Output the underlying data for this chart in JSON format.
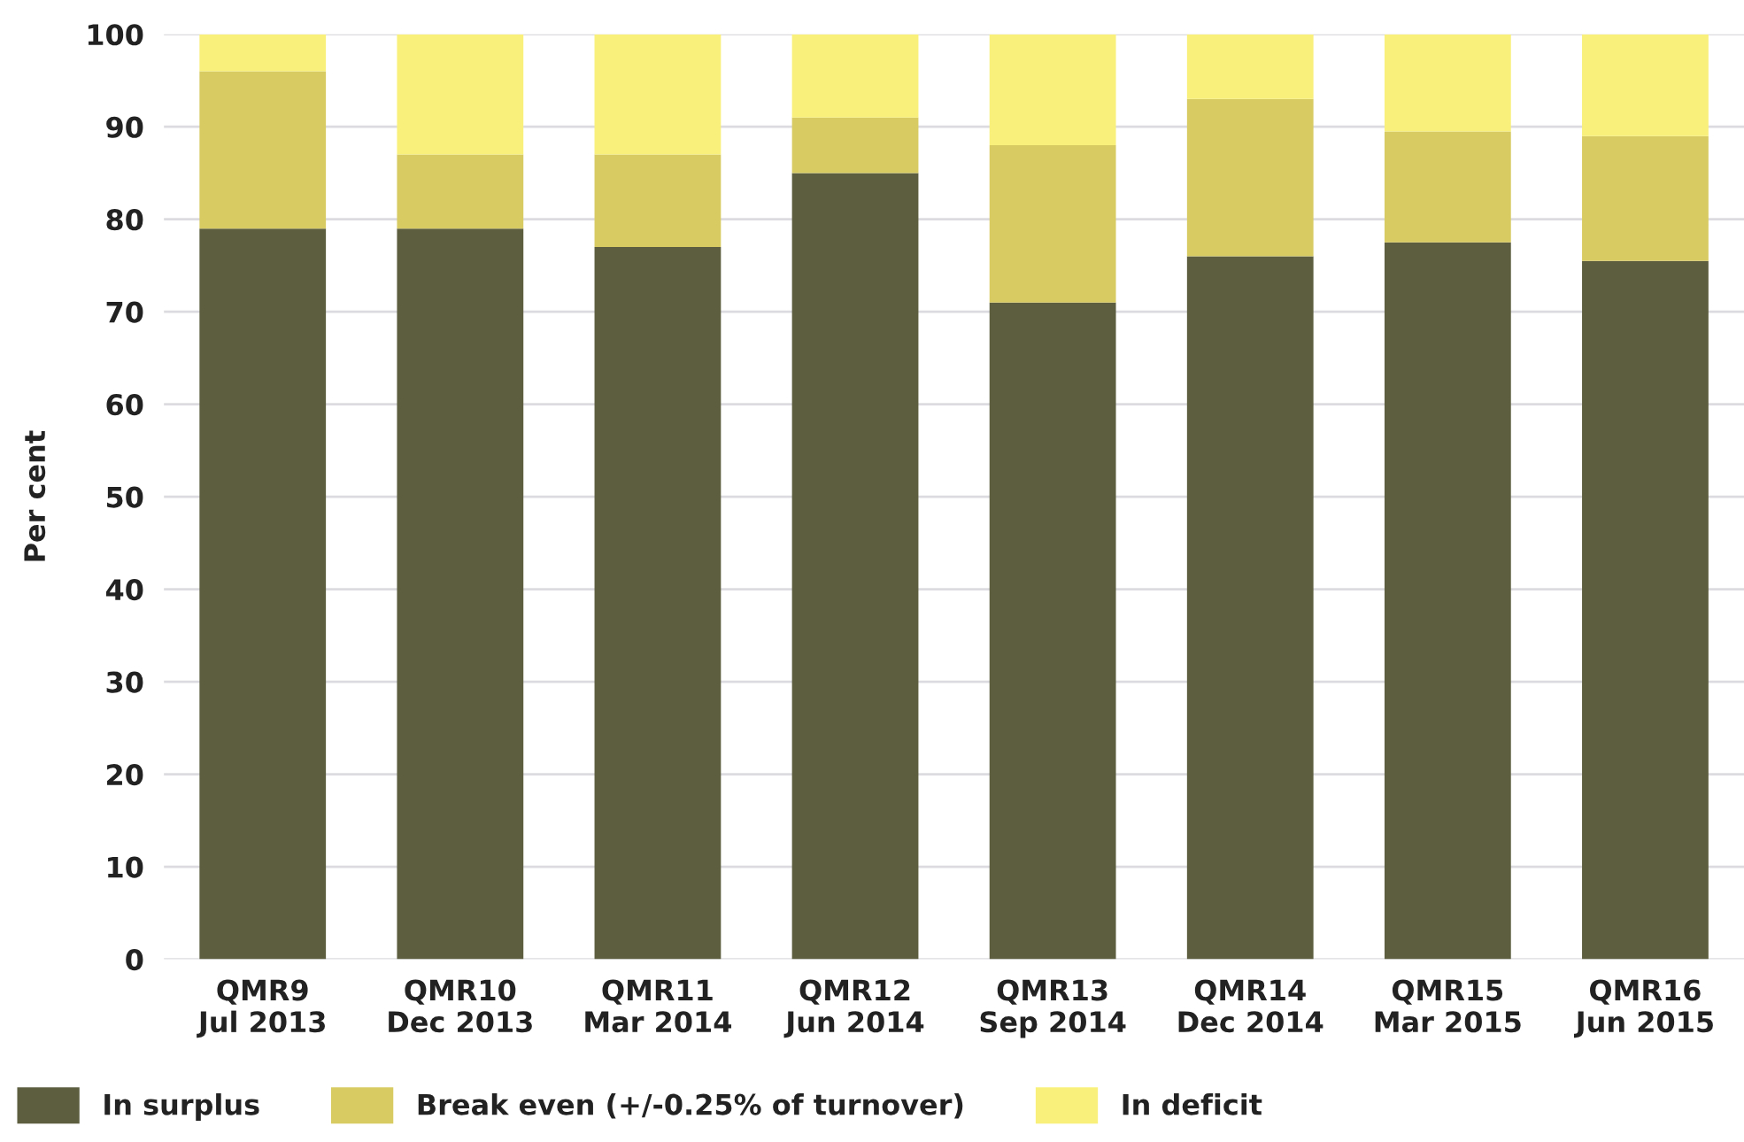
{
  "chart_data": {
    "type": "bar",
    "stacked": true,
    "categories": [
      "QMR9\nJul 2013",
      "QMR10\nDec 2013",
      "QMR11\nMar 2014",
      "QMR12\nJun 2014",
      "QMR13\nSep 2014",
      "QMR14\nDec 2014",
      "QMR15\nMar 2015",
      "QMR16\nJun 2015"
    ],
    "series": [
      {
        "name": "In surplus",
        "color": "#5d5e3f",
        "values": [
          79,
          79,
          77,
          85,
          71,
          76,
          77.5,
          75.5
        ]
      },
      {
        "name": "Break even (+/-0.25% of turnover)",
        "color": "#d8cb62",
        "values": [
          17,
          8,
          10,
          6,
          17,
          17,
          12,
          13.5
        ]
      },
      {
        "name": "In deficit",
        "color": "#f8f07a",
        "values": [
          4,
          13,
          13,
          9,
          12,
          7,
          10.5,
          11
        ]
      }
    ],
    "ylabel": "Per cent",
    "ylim": [
      0,
      100
    ],
    "yticks": [
      0,
      10,
      20,
      30,
      40,
      50,
      60,
      70,
      80,
      90,
      100
    ],
    "grid": "y",
    "legend": "bottom left"
  }
}
